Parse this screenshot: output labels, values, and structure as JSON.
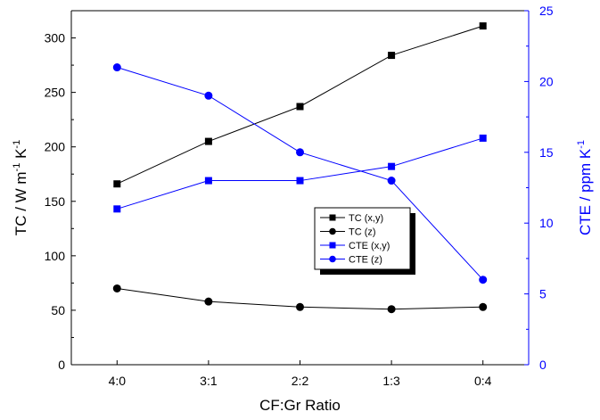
{
  "chart_data": {
    "type": "line",
    "categories": [
      "4:0",
      "3:1",
      "2:2",
      "1:3",
      "0:4"
    ],
    "xlabel": "CF:Gr Ratio",
    "ylabel_left": {
      "main": "TC  /  W m",
      "sup1": "-1",
      "mid": " K",
      "sup2": "-1"
    },
    "ylabel_right": {
      "main": "CTE  /  ppm K",
      "sup": "-1"
    },
    "ylim_left": [
      0,
      325
    ],
    "yticks_left": [
      0,
      50,
      100,
      150,
      200,
      250,
      300
    ],
    "ylim_right": [
      0,
      25
    ],
    "yticks_right": [
      0,
      5,
      10,
      15,
      20,
      25
    ],
    "grid": false,
    "legend_position": "center-right",
    "series": [
      {
        "name": "TC (x,y)",
        "axis": "left",
        "color": "#000000",
        "marker": "square",
        "values": [
          166,
          205,
          237,
          284,
          311
        ]
      },
      {
        "name": "TC (z)",
        "axis": "left",
        "color": "#000000",
        "marker": "circle",
        "values": [
          70,
          58,
          53,
          51,
          53
        ]
      },
      {
        "name": "CTE (x,y)",
        "axis": "right",
        "color": "#0000ff",
        "marker": "square",
        "values": [
          11,
          13,
          13,
          14,
          16
        ]
      },
      {
        "name": "CTE (z)",
        "axis": "right",
        "color": "#0000ff",
        "marker": "circle",
        "values": [
          21,
          19,
          15,
          13,
          6
        ]
      }
    ]
  }
}
